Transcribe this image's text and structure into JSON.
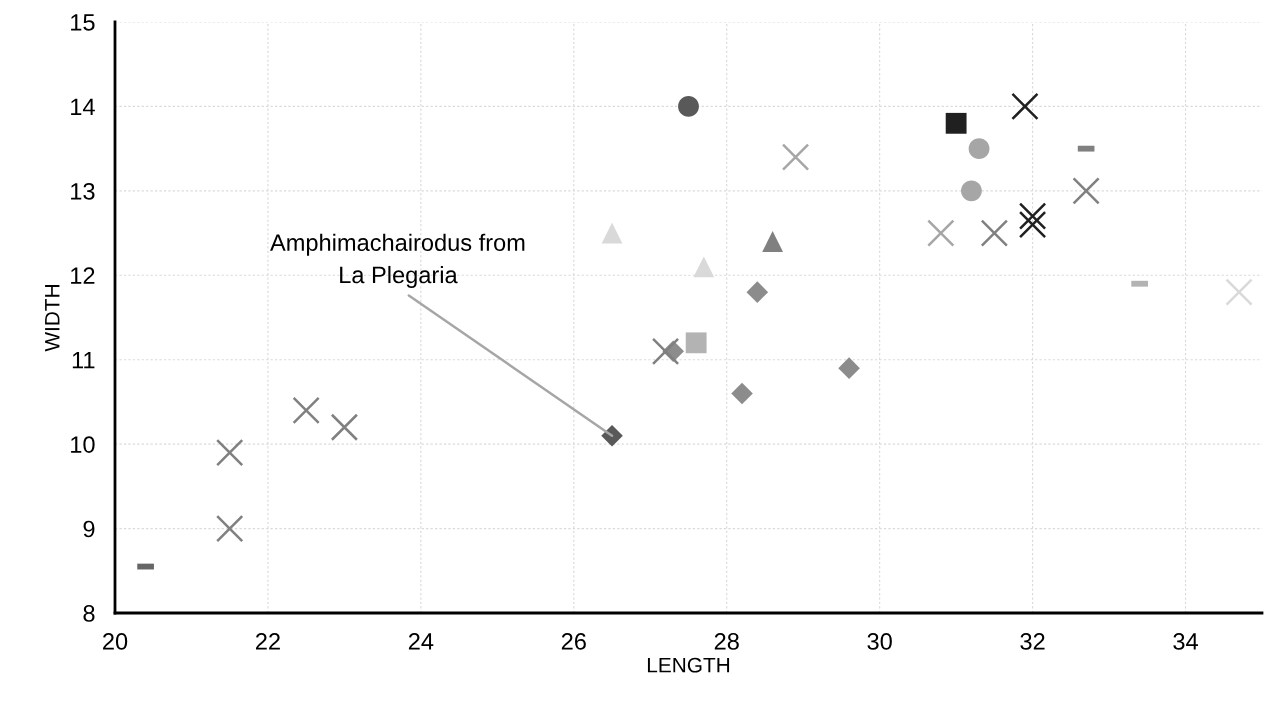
{
  "chart_data": {
    "type": "scatter",
    "xlabel": "LENGTH",
    "ylabel": "WIDTH",
    "xlim": [
      20,
      35
    ],
    "xticks": [
      20,
      22,
      24,
      26,
      28,
      30,
      32,
      34
    ],
    "ylim": [
      8,
      15
    ],
    "yticks": [
      8,
      9,
      10,
      11,
      12,
      13,
      14,
      15
    ],
    "grid": true,
    "annotations": [
      {
        "text": "Amphimachairodus from\nLa Plegaria",
        "x": 26.5,
        "y": 10.1
      }
    ],
    "series": [
      {
        "color": "#666666",
        "x": [
          20.4
        ],
        "values": [
          8.55
        ]
      },
      {
        "color": "#808080",
        "x": [
          32.7
        ],
        "values": [
          13.5
        ]
      },
      {
        "color": "#b3b3b3",
        "x": [
          33.4
        ],
        "values": [
          11.9
        ]
      },
      {
        "marker": "cross",
        "color": "#808080",
        "x": [
          21.5,
          21.5,
          22.5,
          23.0
        ],
        "values": [
          9.9,
          9.0,
          10.4,
          10.2
        ]
      },
      {
        "marker": "cross",
        "color": "#d9d9d9",
        "x": [
          34.7
        ],
        "values": [
          11.8
        ]
      },
      {
        "marker": "cross",
        "color": "#202020",
        "x": [
          31.9,
          32.0,
          32.0
        ],
        "values": [
          14.0,
          12.7,
          12.6
        ]
      },
      {
        "marker": "cross",
        "color": "#a6a6a6",
        "x": [
          30.8
        ],
        "values": [
          12.5
        ]
      },
      {
        "marker": "diamond",
        "color": "#595959",
        "x": [
          26.5
        ],
        "values": [
          10.1
        ]
      },
      {
        "marker": "diamond",
        "color": "#8c8c8c",
        "x": [
          27.3,
          28.4,
          28.2,
          29.6
        ],
        "values": [
          11.1,
          11.8,
          10.6,
          10.9
        ]
      },
      {
        "marker": "circle",
        "color": "#595959",
        "x": [
          27.5
        ],
        "values": [
          14.0
        ]
      },
      {
        "marker": "circle",
        "color": "#a6a6a6",
        "x": [
          31.3,
          31.2
        ],
        "values": [
          13.5,
          13.0
        ]
      },
      {
        "marker": "square",
        "color": "#202020",
        "x": [
          31.0
        ],
        "values": [
          13.8
        ]
      },
      {
        "marker": "square",
        "color": "#b3b3b3",
        "x": [
          27.6
        ],
        "values": [
          11.2
        ]
      },
      {
        "marker": "triangle",
        "color": "#d9d9d9",
        "x": [
          26.5,
          27.7
        ],
        "values": [
          12.5,
          12.1
        ]
      },
      {
        "marker": "triangle",
        "color": "#808080",
        "x": [
          28.6
        ],
        "values": [
          12.4
        ]
      },
      {
        "marker": "cross",
        "color": "#a6a6a6",
        "x": [
          28.9
        ],
        "values": [
          13.4
        ]
      },
      {
        "marker": "cross",
        "color": "#808080",
        "x": [
          27.2,
          31.5,
          32.7
        ],
        "values": [
          11.1,
          12.5,
          13.0
        ]
      }
    ]
  }
}
